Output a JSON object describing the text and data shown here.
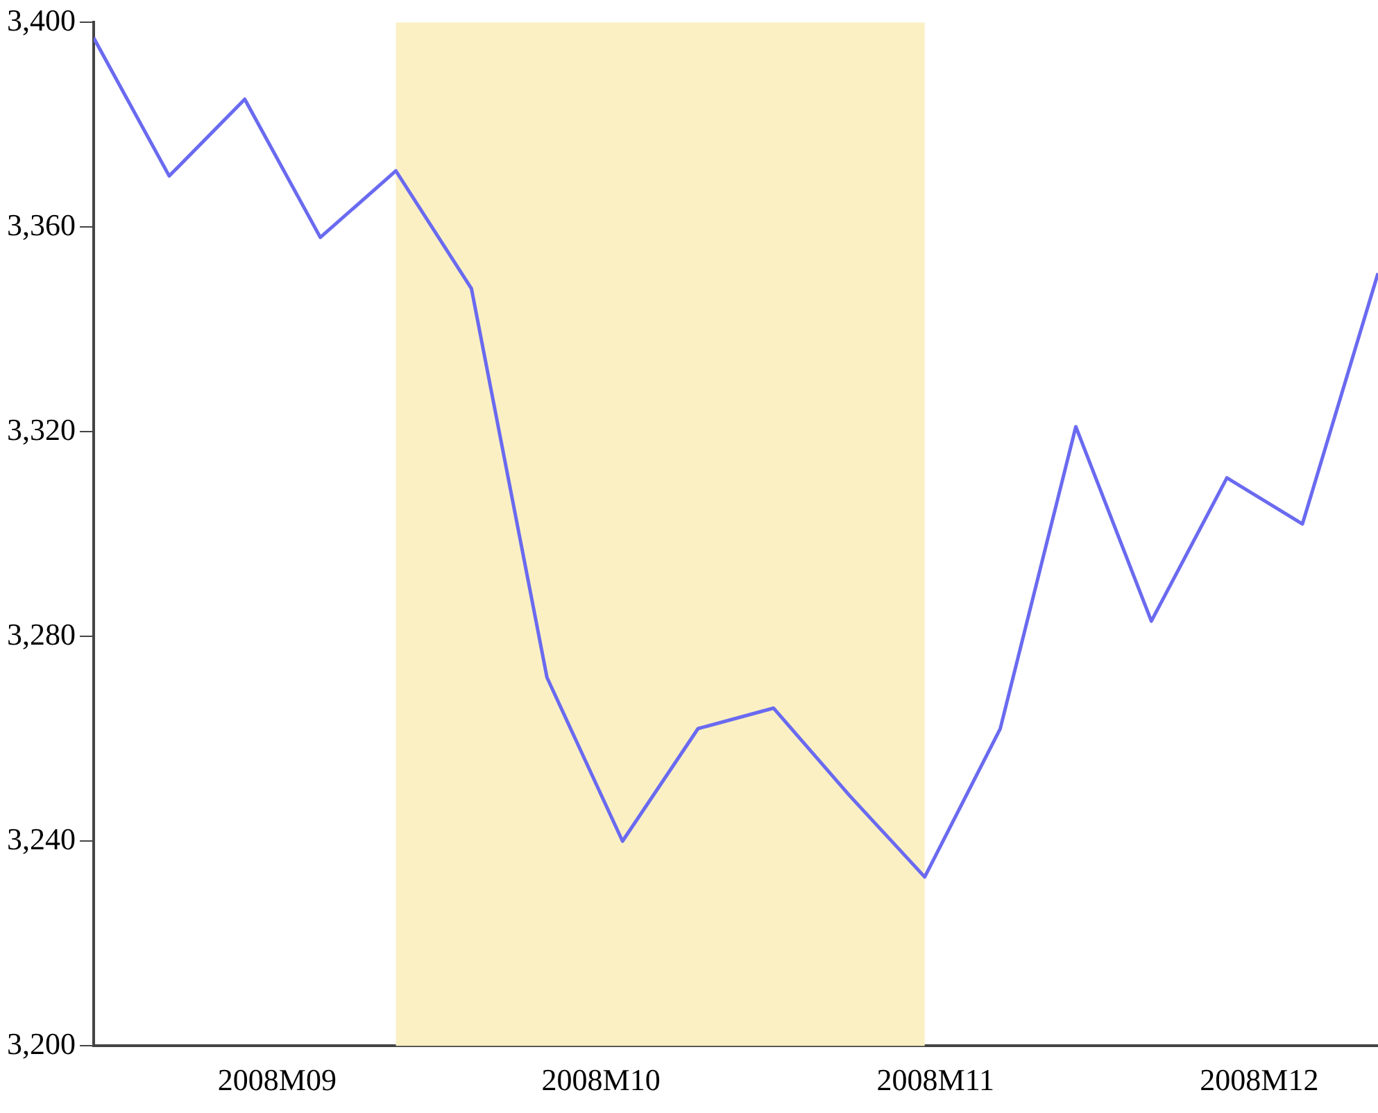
{
  "chart_data": {
    "type": "line",
    "x": [
      "2008-08-15",
      "2008-08-22",
      "2008-08-29",
      "2008-09-05",
      "2008-09-12",
      "2008-09-19",
      "2008-09-26",
      "2008-10-03",
      "2008-10-10",
      "2008-10-17",
      "2008-10-24",
      "2008-10-31",
      "2008-11-07",
      "2008-11-14",
      "2008-11-21",
      "2008-11-28",
      "2008-12-05",
      "2008-12-12"
    ],
    "series": [
      {
        "color": "#6a6af0",
        "values": [
          3397,
          3370,
          3385,
          3358,
          3371,
          3348,
          3272,
          3240,
          3262,
          3266,
          3249,
          3233,
          3262,
          3321,
          3283,
          3311,
          3302,
          3351
        ]
      }
    ],
    "xlim": [
      "2008-08-15",
      "2008-12-12"
    ],
    "xticks": [
      {
        "value": "2008-09-01",
        "label": "2008M09"
      },
      {
        "value": "2008-10-01",
        "label": "2008M10"
      },
      {
        "value": "2008-11-01",
        "label": "2008M11"
      },
      {
        "value": "2008-12-01",
        "label": "2008M12"
      }
    ],
    "ylim": [
      3200,
      3400
    ],
    "yticks": [
      {
        "value": 3200,
        "label": "3,200"
      },
      {
        "value": 3240,
        "label": "3,240"
      },
      {
        "value": 3280,
        "label": "3,280"
      },
      {
        "value": 3320,
        "label": "3,320"
      },
      {
        "value": 3360,
        "label": "3,360"
      },
      {
        "value": 3400,
        "label": "3,400"
      }
    ],
    "bands": [
      {
        "axis": "x",
        "from": "2008-09-12",
        "to": "2008-10-31",
        "color": "#fbf0c4"
      }
    ],
    "grid": false,
    "legend": false,
    "marker": "none",
    "line_style": "solid"
  }
}
